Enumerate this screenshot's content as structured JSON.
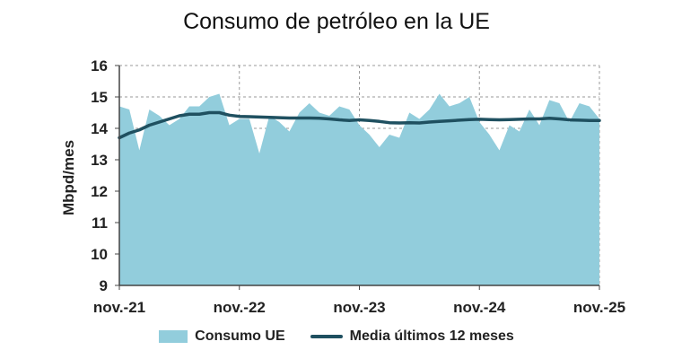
{
  "chart_data": {
    "type": "area",
    "title": "Consumo de petróleo en la UE",
    "ylabel": "Mbpd/mes",
    "xlabel": "",
    "ylim": [
      9,
      16
    ],
    "yticks": [
      "9",
      "10",
      "11",
      "12",
      "13",
      "14",
      "15",
      "16"
    ],
    "xticks": [
      "nov.-21",
      "nov.-22",
      "nov.-23",
      "nov.-24",
      "nov.-25"
    ],
    "grid": "dashed",
    "legend_position": "bottom",
    "x": [
      "nov.-21",
      "dic.-21",
      "ene.-22",
      "feb.-22",
      "mar.-22",
      "abr.-22",
      "may.-22",
      "jun.-22",
      "jul.-22",
      "ago.-22",
      "sep.-22",
      "oct.-22",
      "nov.-22",
      "dic.-22",
      "ene.-23",
      "feb.-23",
      "mar.-23",
      "abr.-23",
      "may.-23",
      "jun.-23",
      "jul.-23",
      "ago.-23",
      "sep.-23",
      "oct.-23",
      "nov.-23",
      "dic.-23",
      "ene.-24",
      "feb.-24",
      "mar.-24",
      "abr.-24",
      "may.-24",
      "jun.-24",
      "jul.-24",
      "ago.-24",
      "sep.-24",
      "oct.-24",
      "nov.-24",
      "dic.-24",
      "ene.-25",
      "feb.-25",
      "mar.-25",
      "abr.-25",
      "may.-25",
      "jun.-25",
      "jul.-25",
      "ago.-25",
      "sep.-25",
      "oct.-25",
      "nov.-25"
    ],
    "series": [
      {
        "name": "Consumo UE",
        "style": "area",
        "color": "#92CDDC",
        "values": [
          14.7,
          14.6,
          13.3,
          14.6,
          14.4,
          14.1,
          14.3,
          14.7,
          14.7,
          15.0,
          15.1,
          14.1,
          14.3,
          14.3,
          13.2,
          14.4,
          14.2,
          13.9,
          14.5,
          14.8,
          14.5,
          14.4,
          14.7,
          14.6,
          14.1,
          13.8,
          13.4,
          13.8,
          13.7,
          14.5,
          14.3,
          14.6,
          15.1,
          14.7,
          14.8,
          15.0,
          14.2,
          13.8,
          13.3,
          14.1,
          13.9,
          14.6,
          14.1,
          14.9,
          14.8,
          14.2,
          14.8,
          14.7,
          14.3
        ]
      },
      {
        "name": "Media últimos 12 meses",
        "style": "line",
        "color": "#1F5060",
        "values": [
          13.7,
          13.85,
          13.95,
          14.1,
          14.2,
          14.3,
          14.4,
          14.45,
          14.45,
          14.5,
          14.5,
          14.42,
          14.38,
          14.37,
          14.36,
          14.35,
          14.34,
          14.33,
          14.33,
          14.33,
          14.32,
          14.3,
          14.27,
          14.25,
          14.27,
          14.25,
          14.22,
          14.18,
          14.17,
          14.18,
          14.17,
          14.2,
          14.22,
          14.24,
          14.26,
          14.28,
          14.29,
          14.28,
          14.27,
          14.28,
          14.29,
          14.3,
          14.3,
          14.32,
          14.3,
          14.27,
          14.26,
          14.25,
          14.25
        ]
      }
    ]
  }
}
